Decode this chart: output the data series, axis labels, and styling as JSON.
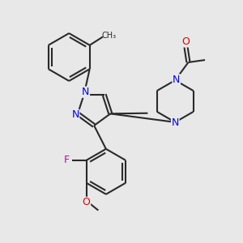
{
  "bg_color": "#e8e8e8",
  "bond_color": "#2a2a2a",
  "N_color": "#0000ee",
  "O_color": "#dd0000",
  "F_color": "#cc00aa",
  "text_color": "#2a2a2a",
  "bond_width": 1.5,
  "figsize": [
    3.0,
    3.0
  ],
  "dpi": 100,
  "xlim": [
    0,
    10
  ],
  "ylim": [
    0,
    10
  ]
}
